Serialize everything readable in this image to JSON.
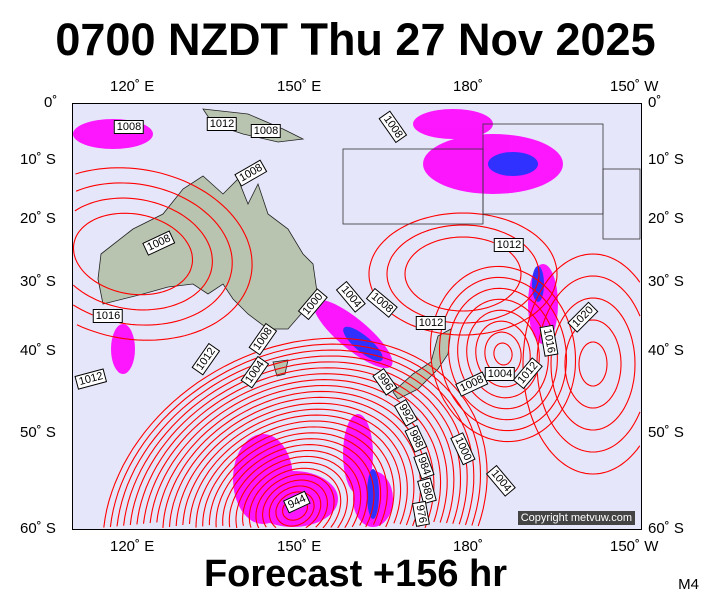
{
  "title": "0700 NZDT Thu 27 Nov 2025",
  "footer": "Forecast +156 hr",
  "model": "M4",
  "copyright": "Copyright metvuw.com",
  "lon_labels": [
    "120˚ E",
    "150˚ E",
    "180˚",
    "150˚ W"
  ],
  "lat_labels": [
    "0˚",
    "10˚ S",
    "20˚ S",
    "30˚ S",
    "40˚ S",
    "50˚ S",
    "60˚ S"
  ],
  "isobar_labels": [
    "1008",
    "1012",
    "1008",
    "1008",
    "1008",
    "1008",
    "1016",
    "1012",
    "1012",
    "1000",
    "1004",
    "1008",
    "1012",
    "1012",
    "1020",
    "1016",
    "1004",
    "1012",
    "1008",
    "1008",
    "1004",
    "996",
    "992",
    "988",
    "984",
    "980",
    "976",
    "1000",
    "1004",
    "944"
  ],
  "colors": {
    "ocean": "#e6e6fa",
    "land": "#b8c4b0",
    "isobar": "#ff0000",
    "precip_light": "#ff00ff",
    "precip_mid": "#3030ff",
    "precip_heavy": "#00e0c0"
  }
}
